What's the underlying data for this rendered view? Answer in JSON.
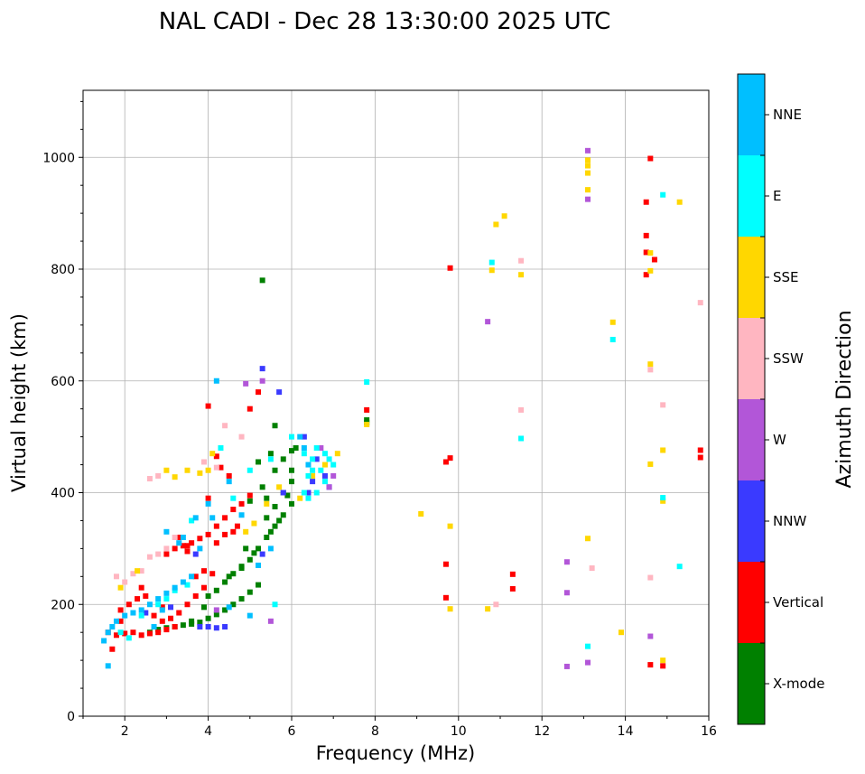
{
  "chart_data": {
    "type": "scatter",
    "title": "NAL CADI - Dec 28 13:30:00 2025 UTC",
    "xlabel": "Frequency (MHz)",
    "ylabel": "Virtual height (km)",
    "xlim": [
      1,
      16
    ],
    "ylim": [
      0,
      1120
    ],
    "xticks": [
      2,
      4,
      6,
      8,
      10,
      12,
      14,
      16
    ],
    "yticks": [
      0,
      200,
      400,
      600,
      800,
      1000
    ],
    "grid": true,
    "colorbar": {
      "label": "Azimuth Direction",
      "categories": [
        {
          "name": "X-mode",
          "color": "#008000"
        },
        {
          "name": "Vertical",
          "color": "#ff0000"
        },
        {
          "name": "NNW",
          "color": "#3a3aff"
        },
        {
          "name": "W",
          "color": "#b256d8"
        },
        {
          "name": "SSW",
          "color": "#ffb6c1"
        },
        {
          "name": "SSE",
          "color": "#ffd700"
        },
        {
          "name": "E",
          "color": "#00ffff"
        },
        {
          "name": "NNE",
          "color": "#00bfff"
        }
      ]
    },
    "series": [
      {
        "name": "X-mode",
        "points": [
          [
            2.6,
            150
          ],
          [
            2.8,
            155
          ],
          [
            3.0,
            158
          ],
          [
            3.2,
            160
          ],
          [
            3.4,
            163
          ],
          [
            3.6,
            165
          ],
          [
            3.8,
            168
          ],
          [
            4.0,
            175
          ],
          [
            4.2,
            182
          ],
          [
            4.4,
            190
          ],
          [
            4.6,
            200
          ],
          [
            4.8,
            210
          ],
          [
            5.0,
            222
          ],
          [
            5.2,
            235
          ],
          [
            4.0,
            215
          ],
          [
            4.2,
            225
          ],
          [
            4.4,
            240
          ],
          [
            4.6,
            255
          ],
          [
            4.8,
            268
          ],
          [
            5.0,
            280
          ],
          [
            5.2,
            300
          ],
          [
            5.4,
            320
          ],
          [
            5.6,
            340
          ],
          [
            5.8,
            360
          ],
          [
            6.0,
            380
          ],
          [
            5.4,
            355
          ],
          [
            5.6,
            375
          ],
          [
            5.8,
            400
          ],
          [
            6.0,
            420
          ],
          [
            5.6,
            440
          ],
          [
            5.8,
            460
          ],
          [
            6.0,
            475
          ],
          [
            6.1,
            480
          ],
          [
            5.2,
            455
          ],
          [
            5.3,
            410
          ],
          [
            5.4,
            390
          ],
          [
            5.0,
            385
          ],
          [
            5.3,
            780
          ],
          [
            3.6,
            170
          ],
          [
            3.9,
            195
          ],
          [
            4.5,
            250
          ],
          [
            5.1,
            292
          ],
          [
            5.5,
            330
          ],
          [
            4.9,
            300
          ],
          [
            4.8,
            265
          ],
          [
            5.7,
            350
          ],
          [
            5.9,
            395
          ],
          [
            6.0,
            440
          ],
          [
            7.8,
            525
          ],
          [
            7.8,
            530
          ],
          [
            5.6,
            520
          ],
          [
            5.5,
            470
          ]
        ]
      },
      {
        "name": "Vertical",
        "points": [
          [
            1.6,
            150
          ],
          [
            1.8,
            145
          ],
          [
            2.0,
            148
          ],
          [
            2.2,
            150
          ],
          [
            2.4,
            145
          ],
          [
            2.6,
            148
          ],
          [
            2.8,
            150
          ],
          [
            3.0,
            155
          ],
          [
            3.2,
            160
          ],
          [
            1.9,
            190
          ],
          [
            2.1,
            200
          ],
          [
            2.3,
            210
          ],
          [
            2.5,
            215
          ],
          [
            2.7,
            180
          ],
          [
            2.9,
            170
          ],
          [
            3.1,
            175
          ],
          [
            3.3,
            185
          ],
          [
            3.5,
            200
          ],
          [
            3.7,
            215
          ],
          [
            3.9,
            230
          ],
          [
            4.1,
            255
          ],
          [
            3.0,
            290
          ],
          [
            3.2,
            300
          ],
          [
            3.4,
            305
          ],
          [
            3.6,
            310
          ],
          [
            3.8,
            318
          ],
          [
            4.0,
            325
          ],
          [
            4.2,
            340
          ],
          [
            4.4,
            355
          ],
          [
            4.6,
            370
          ],
          [
            4.8,
            380
          ],
          [
            5.0,
            395
          ],
          [
            3.3,
            320
          ],
          [
            3.5,
            295
          ],
          [
            3.7,
            250
          ],
          [
            3.9,
            260
          ],
          [
            4.2,
            310
          ],
          [
            4.4,
            325
          ],
          [
            4.6,
            330
          ],
          [
            4.7,
            340
          ],
          [
            4.0,
            390
          ],
          [
            4.3,
            445
          ],
          [
            4.0,
            555
          ],
          [
            3.5,
            305
          ],
          [
            2.9,
            195
          ],
          [
            1.9,
            170
          ],
          [
            1.7,
            120
          ],
          [
            2.4,
            230
          ],
          [
            5.0,
            550
          ],
          [
            4.2,
            465
          ],
          [
            4.5,
            430
          ],
          [
            5.2,
            580
          ],
          [
            7.8,
            548
          ],
          [
            9.7,
            455
          ],
          [
            9.8,
            462
          ],
          [
            9.8,
            802
          ],
          [
            9.7,
            272
          ],
          [
            9.7,
            212
          ],
          [
            11.3,
            254
          ],
          [
            11.3,
            228
          ],
          [
            14.5,
            860
          ],
          [
            14.5,
            790
          ],
          [
            14.5,
            920
          ],
          [
            14.5,
            830
          ],
          [
            14.6,
            998
          ],
          [
            14.7,
            817
          ],
          [
            14.6,
            92
          ],
          [
            14.9,
            90
          ],
          [
            15.8,
            476
          ],
          [
            15.8,
            463
          ]
        ]
      },
      {
        "name": "NNW",
        "points": [
          [
            3.8,
            160
          ],
          [
            4.0,
            160
          ],
          [
            4.2,
            158
          ],
          [
            4.4,
            160
          ],
          [
            5.3,
            290
          ],
          [
            6.4,
            400
          ],
          [
            6.5,
            420
          ],
          [
            6.3,
            500
          ],
          [
            6.6,
            460
          ],
          [
            5.8,
            400
          ],
          [
            6.8,
            430
          ],
          [
            6.9,
            410
          ],
          [
            5.7,
            580
          ],
          [
            5.3,
            622
          ],
          [
            2.5,
            185
          ],
          [
            3.1,
            195
          ],
          [
            3.7,
            290
          ]
        ]
      },
      {
        "name": "W",
        "points": [
          [
            4.2,
            190
          ],
          [
            5.3,
            600
          ],
          [
            4.9,
            595
          ],
          [
            6.7,
            480
          ],
          [
            7.0,
            430
          ],
          [
            6.9,
            410
          ],
          [
            5.5,
            170
          ],
          [
            10.7,
            706
          ],
          [
            12.6,
            276
          ],
          [
            12.6,
            221
          ],
          [
            12.6,
            89
          ],
          [
            13.1,
            96
          ],
          [
            13.1,
            1012
          ],
          [
            13.1,
            925
          ],
          [
            14.6,
            143
          ]
        ]
      },
      {
        "name": "SSW",
        "points": [
          [
            1.8,
            250
          ],
          [
            2.0,
            240
          ],
          [
            2.2,
            255
          ],
          [
            2.4,
            260
          ],
          [
            2.6,
            285
          ],
          [
            2.8,
            290
          ],
          [
            2.6,
            425
          ],
          [
            2.8,
            430
          ],
          [
            3.0,
            300
          ],
          [
            3.2,
            320
          ],
          [
            3.9,
            455
          ],
          [
            4.2,
            445
          ],
          [
            4.4,
            520
          ],
          [
            4.8,
            500
          ],
          [
            10.9,
            200
          ],
          [
            11.5,
            815
          ],
          [
            11.5,
            548
          ],
          [
            13.2,
            265
          ],
          [
            14.6,
            620
          ],
          [
            14.6,
            248
          ],
          [
            14.9,
            557
          ],
          [
            15.8,
            740
          ]
        ]
      },
      {
        "name": "SSE",
        "points": [
          [
            1.9,
            230
          ],
          [
            2.3,
            260
          ],
          [
            3.0,
            440
          ],
          [
            3.2,
            428
          ],
          [
            3.5,
            440
          ],
          [
            3.8,
            435
          ],
          [
            4.0,
            440
          ],
          [
            4.1,
            470
          ],
          [
            4.9,
            330
          ],
          [
            5.1,
            345
          ],
          [
            5.4,
            380
          ],
          [
            5.7,
            410
          ],
          [
            6.2,
            390
          ],
          [
            6.5,
            430
          ],
          [
            6.8,
            450
          ],
          [
            7.1,
            470
          ],
          [
            7.8,
            522
          ],
          [
            9.1,
            362
          ],
          [
            9.8,
            340
          ],
          [
            9.8,
            192
          ],
          [
            10.7,
            192
          ],
          [
            10.8,
            798
          ],
          [
            10.9,
            880
          ],
          [
            11.1,
            895
          ],
          [
            11.5,
            790
          ],
          [
            13.1,
            318
          ],
          [
            13.1,
            995
          ],
          [
            13.1,
            985
          ],
          [
            13.1,
            972
          ],
          [
            13.1,
            942
          ],
          [
            13.7,
            705
          ],
          [
            13.9,
            150
          ],
          [
            14.6,
            829
          ],
          [
            14.6,
            797
          ],
          [
            14.6,
            630
          ],
          [
            14.6,
            451
          ],
          [
            14.9,
            476
          ],
          [
            14.9,
            100
          ],
          [
            14.9,
            385
          ],
          [
            15.3,
            920
          ]
        ]
      },
      {
        "name": "E",
        "points": [
          [
            1.9,
            150
          ],
          [
            2.1,
            140
          ],
          [
            2.4,
            180
          ],
          [
            2.8,
            200
          ],
          [
            3.0,
            210
          ],
          [
            3.2,
            225
          ],
          [
            3.5,
            235
          ],
          [
            3.6,
            350
          ],
          [
            4.3,
            480
          ],
          [
            4.6,
            390
          ],
          [
            5.0,
            440
          ],
          [
            5.5,
            460
          ],
          [
            6.0,
            500
          ],
          [
            6.3,
            400
          ],
          [
            6.4,
            430
          ],
          [
            6.5,
            460
          ],
          [
            6.6,
            480
          ],
          [
            6.7,
            440
          ],
          [
            6.8,
            420
          ],
          [
            6.9,
            460
          ],
          [
            7.0,
            450
          ],
          [
            6.3,
            470
          ],
          [
            6.4,
            390
          ],
          [
            6.6,
            400
          ],
          [
            6.5,
            440
          ],
          [
            6.8,
            470
          ],
          [
            5.6,
            200
          ],
          [
            7.8,
            598
          ],
          [
            10.8,
            812
          ],
          [
            11.5,
            497
          ],
          [
            13.1,
            125
          ],
          [
            13.7,
            674
          ],
          [
            14.9,
            933
          ],
          [
            14.9,
            391
          ],
          [
            15.3,
            268
          ]
        ]
      },
      {
        "name": "NNE",
        "points": [
          [
            1.5,
            135
          ],
          [
            1.6,
            150
          ],
          [
            1.7,
            160
          ],
          [
            1.8,
            170
          ],
          [
            2.0,
            180
          ],
          [
            2.2,
            185
          ],
          [
            2.4,
            190
          ],
          [
            2.6,
            200
          ],
          [
            2.8,
            210
          ],
          [
            3.0,
            220
          ],
          [
            3.2,
            230
          ],
          [
            3.4,
            240
          ],
          [
            3.6,
            250
          ],
          [
            3.8,
            300
          ],
          [
            3.0,
            330
          ],
          [
            3.4,
            320
          ],
          [
            3.7,
            355
          ],
          [
            4.1,
            355
          ],
          [
            4.5,
            420
          ],
          [
            4.8,
            360
          ],
          [
            5.2,
            270
          ],
          [
            5.5,
            300
          ],
          [
            6.2,
            500
          ],
          [
            6.3,
            480
          ],
          [
            6.4,
            450
          ],
          [
            1.6,
            90
          ],
          [
            4.0,
            380
          ],
          [
            4.2,
            600
          ],
          [
            2.7,
            160
          ],
          [
            2.9,
            190
          ],
          [
            3.3,
            310
          ],
          [
            4.5,
            195
          ],
          [
            5.0,
            180
          ]
        ]
      }
    ]
  }
}
